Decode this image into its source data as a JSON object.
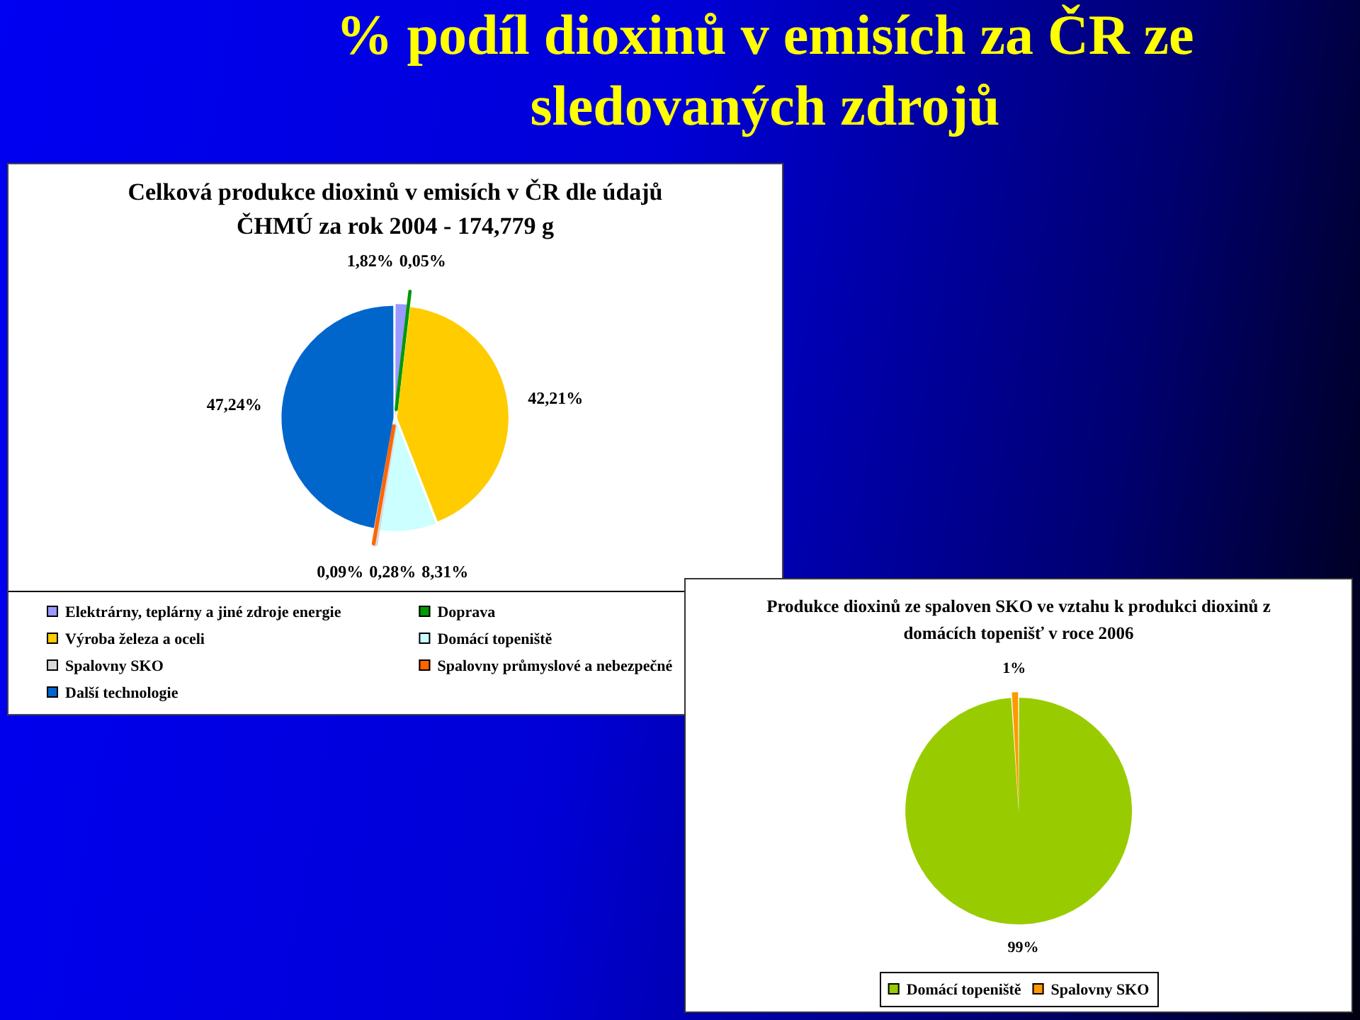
{
  "chart_data": [
    {
      "type": "pie",
      "title": "% podíl dioxinů v emisích za ČR ze sledovaných zdrojů",
      "subtitle": "Celková produkce dioxinů v emisích v ČR dle údajů ČHMÚ za rok 2004 - 174,779 g",
      "categories": [
        "Elektrárny, teplárny a jiné zdroje energie",
        "Doprava",
        "Výroba železa a oceli",
        "Domácí topeniště",
        "Spalovny SKO",
        "Spalovny průmyslové a nebezpečné",
        "Další technologie"
      ],
      "values": [
        1.82,
        0.05,
        42.21,
        8.31,
        0.28,
        0.09,
        47.24
      ],
      "value_labels": [
        "1,82%",
        "0,05%",
        "42,21%",
        "8,31%",
        "0,28%",
        "0,09%",
        "47,24%"
      ],
      "colors": [
        "#9999ff",
        "#009900",
        "#ffcc00",
        "#ccffff",
        "#d9d9d9",
        "#ff6600",
        "#0066cc"
      ],
      "legend": "bottom"
    },
    {
      "type": "pie",
      "title": "Produkce dioxinů ze spaloven SKO ve vztahu k produkci dioxinů z domácích topenišť v roce 2006",
      "categories": [
        "Domácí topeniště",
        "Spalovny SKO"
      ],
      "values": [
        99,
        1
      ],
      "value_labels": [
        "99%",
        "1%"
      ],
      "colors": [
        "#99cc00",
        "#ff9900"
      ],
      "legend": "bottom"
    }
  ]
}
